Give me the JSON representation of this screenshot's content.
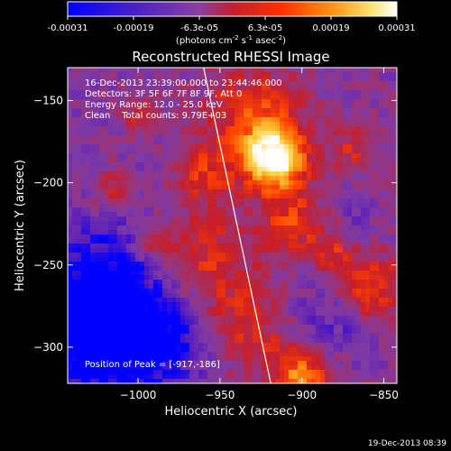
{
  "colorbar": {
    "ticks": [
      "-0.00031",
      "-0.00019",
      "-6.3e-05",
      "6.3e-05",
      "0.00019",
      "0.00031"
    ],
    "units_main": "(photons cm",
    "units_sup1": "-2",
    "units_mid1": " s",
    "units_sup2": "-1",
    "units_mid2": " asec",
    "units_sup3": "-2",
    "units_end": ")",
    "range": [
      -0.00031,
      0.00031
    ]
  },
  "annotations": {
    "time_range": "16-Dec-2013 23:39:00.000 to 23:44:46.000",
    "detectors": "Detectors: 3F 5F 6F 7F 8F 9F, Att 0",
    "energy": "Energy Range: 12.0 - 25.0 keV",
    "method": "Clean    Total counts: 9.79E+03",
    "peak": "Position of Peak = [-917,-186]"
  },
  "footer": {
    "timestamp": "19-Dec-2013 08:39"
  },
  "chart_data": {
    "type": "heatmap",
    "title": "Reconstructed RHESSI Image",
    "xlabel": "Heliocentric X (arcsec)",
    "ylabel": "Heliocentric Y (arcsec)",
    "xlim": [
      -1043,
      -842
    ],
    "ylim": [
      -322,
      -130
    ],
    "xticks": [
      -1000,
      -950,
      -900,
      -850
    ],
    "xtick_labels": [
      "−1000",
      "−950",
      "−900",
      "−850"
    ],
    "yticks": [
      -150,
      -200,
      -250,
      -300
    ],
    "ytick_labels": [
      "−150",
      "−200",
      "−250",
      "−300"
    ],
    "peak": {
      "x": -917,
      "y": -186
    },
    "limb_line": {
      "x1": -960,
      "y1": -130,
      "x2": -919,
      "y2": -322
    },
    "colormap": [
      "#0000ff",
      "#5d1fb8",
      "#7e3aa5",
      "#a0326e",
      "#c81e28",
      "#ff4000",
      "#ff8a10",
      "#ffd040",
      "#ffffff"
    ],
    "colormap_note": "",
    "grid": false
  }
}
